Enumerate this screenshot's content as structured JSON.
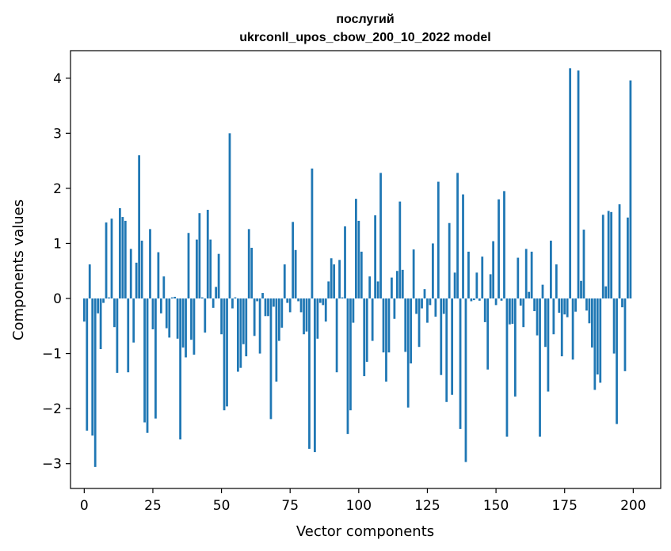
{
  "chart_data": {
    "type": "bar",
    "title_line1": "послугий",
    "title_line2": "ukrconll_upos_cbow_200_10_2022 model",
    "xlabel": "Vector components",
    "ylabel": "Components values",
    "xlim": [
      -5,
      210
    ],
    "ylim": [
      -3.45,
      4.5
    ],
    "xticks": [
      0,
      25,
      50,
      75,
      100,
      125,
      150,
      175,
      200
    ],
    "yticks": [
      -3,
      -2,
      -1,
      0,
      1,
      2,
      3,
      4
    ],
    "ytick_labels": [
      "−3",
      "−2",
      "−1",
      "0",
      "1",
      "2",
      "3",
      "4"
    ],
    "bar_color": "#1f77b4",
    "x": [
      0,
      1,
      2,
      3,
      4,
      5,
      6,
      7,
      8,
      9,
      10,
      11,
      12,
      13,
      14,
      15,
      16,
      17,
      18,
      19,
      20,
      21,
      22,
      23,
      24,
      25,
      26,
      27,
      28,
      29,
      30,
      31,
      32,
      33,
      34,
      35,
      36,
      37,
      38,
      39,
      40,
      41,
      42,
      43,
      44,
      45,
      46,
      47,
      48,
      49,
      50,
      51,
      52,
      53,
      54,
      55,
      56,
      57,
      58,
      59,
      60,
      61,
      62,
      63,
      64,
      65,
      66,
      67,
      68,
      69,
      70,
      71,
      72,
      73,
      74,
      75,
      76,
      77,
      78,
      79,
      80,
      81,
      82,
      83,
      84,
      85,
      86,
      87,
      88,
      89,
      90,
      91,
      92,
      93,
      94,
      95,
      96,
      97,
      98,
      99,
      100,
      101,
      102,
      103,
      104,
      105,
      106,
      107,
      108,
      109,
      110,
      111,
      112,
      113,
      114,
      115,
      116,
      117,
      118,
      119,
      120,
      121,
      122,
      123,
      124,
      125,
      126,
      127,
      128,
      129,
      130,
      131,
      132,
      133,
      134,
      135,
      136,
      137,
      138,
      139,
      140,
      141,
      142,
      143,
      144,
      145,
      146,
      147,
      148,
      149,
      150,
      151,
      152,
      153,
      154,
      155,
      156,
      157,
      158,
      159,
      160,
      161,
      162,
      163,
      164,
      165,
      166,
      167,
      168,
      169,
      170,
      171,
      172,
      173,
      174,
      175,
      176,
      177,
      178,
      179,
      180,
      181,
      182,
      183,
      184,
      185,
      186,
      187,
      188,
      189,
      190,
      191,
      192,
      193,
      194,
      195,
      196,
      197,
      198,
      199
    ],
    "values": [
      -0.42,
      -2.4,
      0.62,
      -2.49,
      -3.06,
      -0.27,
      -0.92,
      -0.08,
      1.38,
      0.02,
      1.45,
      -0.52,
      -1.35,
      1.64,
      1.48,
      1.41,
      -1.34,
      0.9,
      -0.8,
      0.65,
      2.6,
      1.05,
      -2.25,
      -2.44,
      1.26,
      -0.56,
      -2.18,
      0.84,
      -0.27,
      0.4,
      -0.54,
      -0.71,
      0.02,
      0.03,
      -0.73,
      -2.56,
      -0.89,
      -1.07,
      1.19,
      -0.75,
      -1.02,
      1.07,
      1.55,
      0.02,
      -0.62,
      1.61,
      1.07,
      -0.17,
      0.21,
      0.81,
      -0.65,
      -2.03,
      -1.96,
      3.0,
      -0.18,
      0.02,
      -1.33,
      -1.26,
      -0.83,
      -1.05,
      1.26,
      0.92,
      -0.68,
      -0.05,
      -1.0,
      0.1,
      -0.32,
      -0.32,
      -2.19,
      -0.15,
      -1.51,
      -0.77,
      -0.53,
      0.62,
      -0.08,
      -0.25,
      1.39,
      0.88,
      -0.05,
      -0.25,
      -0.65,
      -0.6,
      -2.73,
      2.36,
      -2.79,
      -0.73,
      -0.08,
      -0.12,
      -0.42,
      0.31,
      0.73,
      0.62,
      -1.34,
      0.7,
      0.02,
      1.31,
      -2.46,
      -2.03,
      -0.44,
      1.81,
      1.41,
      0.85,
      -1.41,
      -1.15,
      0.4,
      -0.77,
      1.51,
      0.31,
      2.28,
      -0.98,
      -1.51,
      -0.98,
      0.38,
      -0.37,
      0.5,
      1.76,
      0.52,
      -0.97,
      -1.98,
      -1.18,
      0.89,
      -0.28,
      -0.88,
      -0.18,
      0.17,
      -0.44,
      -0.12,
      1.0,
      -0.33,
      2.12,
      -1.39,
      -0.28,
      -1.88,
      1.37,
      -1.75,
      0.47,
      2.28,
      -2.37,
      1.89,
      -2.97,
      0.85,
      -0.05,
      -0.03,
      0.47,
      -0.04,
      0.76,
      -0.43,
      -1.29,
      0.44,
      1.04,
      -0.12,
      1.8,
      -0.04,
      1.95,
      -2.51,
      -0.47,
      -0.46,
      -1.78,
      0.74,
      -0.13,
      -0.52,
      0.9,
      0.12,
      0.85,
      -0.23,
      -0.67,
      -2.51,
      0.25,
      -0.88,
      -1.69,
      1.05,
      -0.65,
      0.62,
      -0.26,
      -1.05,
      -0.29,
      -0.34,
      4.18,
      -1.11,
      -0.24,
      4.14,
      0.32,
      1.25,
      -0.22,
      -0.45,
      -0.89,
      -1.66,
      -1.38,
      -1.53,
      1.52,
      0.22,
      1.59,
      1.57,
      -1.0,
      -2.28,
      1.71,
      -0.16,
      -1.32,
      1.47,
      3.96
    ]
  }
}
